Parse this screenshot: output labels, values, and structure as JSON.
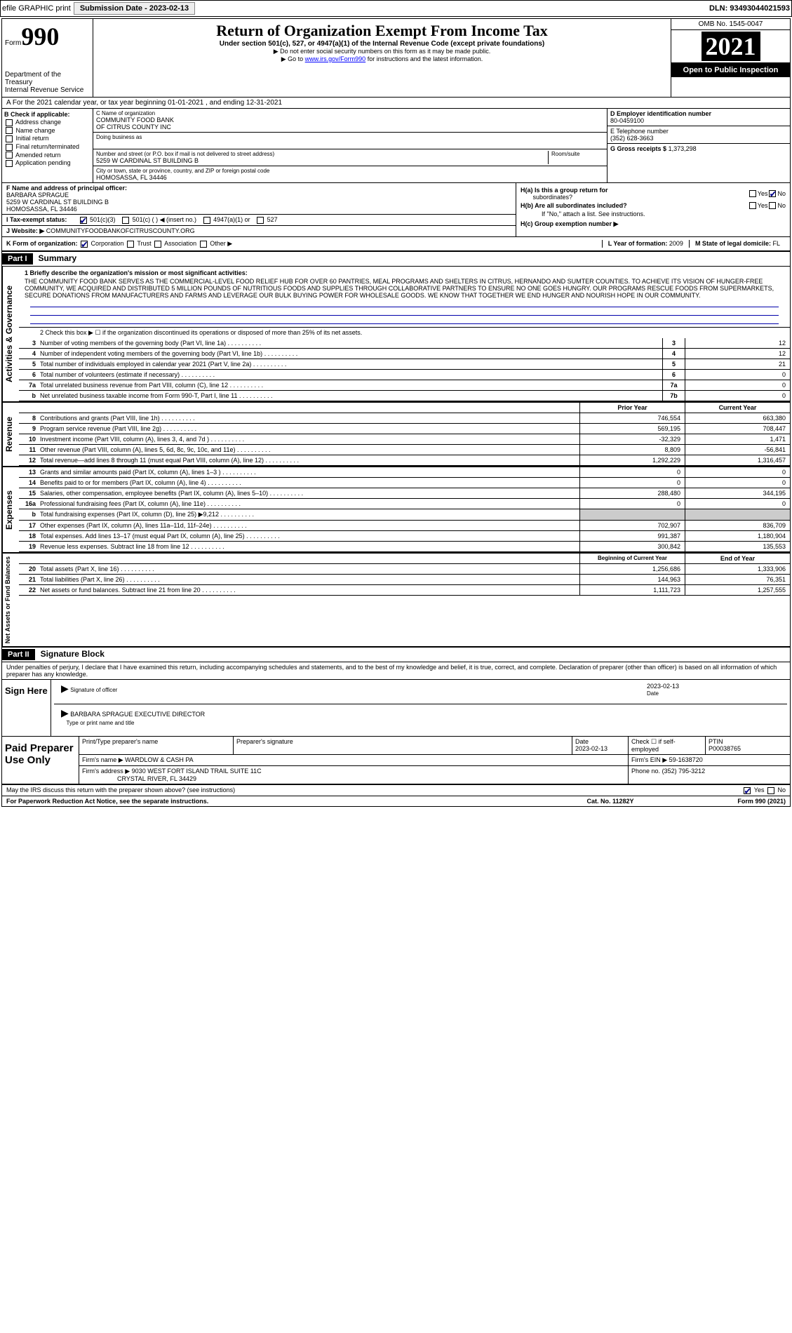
{
  "topbar": {
    "efile": "efile GRAPHIC print",
    "submission_label": "Submission Date - 2023-02-13",
    "dln": "DLN: 93493044021593"
  },
  "header": {
    "form_prefix": "Form",
    "form_number": "990",
    "dept": "Department of the Treasury",
    "irs": "Internal Revenue Service",
    "title": "Return of Organization Exempt From Income Tax",
    "sub": "Under section 501(c), 527, or 4947(a)(1) of the Internal Revenue Code (except private foundations)",
    "note1": "▶ Do not enter social security numbers on this form as it may be made public.",
    "note2_pre": "▶ Go to ",
    "note2_link": "www.irs.gov/Form990",
    "note2_post": " for instructions and the latest information.",
    "omb": "OMB No. 1545-0047",
    "year": "2021",
    "open": "Open to Public Inspection"
  },
  "rowA": "A For the 2021 calendar year, or tax year beginning 01-01-2021   , and ending 12-31-2021",
  "B": {
    "hdr": "B Check if applicable:",
    "items": [
      "Address change",
      "Name change",
      "Initial return",
      "Final return/terminated",
      "Amended return",
      "Application pending"
    ]
  },
  "C": {
    "name_label": "C Name of organization",
    "name1": "COMMUNITY FOOD BANK",
    "name2": "OF CITRUS COUNTY INC",
    "dba_label": "Doing business as",
    "street_label": "Number and street (or P.O. box if mail is not delivered to street address)",
    "room_label": "Room/suite",
    "street": "5259 W CARDINAL ST BUILDING B",
    "city_label": "City or town, state or province, country, and ZIP or foreign postal code",
    "city": "HOMOSASSA, FL  34446"
  },
  "D": {
    "label": "D Employer identification number",
    "value": "80-0459100"
  },
  "E": {
    "label": "E Telephone number",
    "value": "(352) 628-3663"
  },
  "G": {
    "label": "G Gross receipts $",
    "value": "1,373,298"
  },
  "F": {
    "label": "F  Name and address of principal officer:",
    "name": "BARBARA SPRAGUE",
    "addr1": "5259 W CARDINAL ST BUILDING B",
    "addr2": "HOMOSASSA, FL  34446"
  },
  "I": {
    "label": "I Tax-exempt status:",
    "opts": [
      "501(c)(3)",
      "501(c) (  ) ◀ (insert no.)",
      "4947(a)(1) or",
      "527"
    ]
  },
  "J": {
    "label": "J Website: ▶",
    "value": "COMMUNITYFOODBANKOFCITRUSCOUNTY.ORG"
  },
  "H": {
    "a1": "H(a)  Is this a group return for",
    "a2": "subordinates?",
    "b1": "H(b)  Are all subordinates included?",
    "b2": "If \"No,\" attach a list. See instructions.",
    "c": "H(c)  Group exemption number ▶",
    "yes": "Yes",
    "no": "No"
  },
  "K": {
    "label": "K Form of organization:",
    "opts": [
      "Corporation",
      "Trust",
      "Association",
      "Other ▶"
    ]
  },
  "L": {
    "label": "L Year of formation:",
    "value": "2009"
  },
  "M": {
    "label": "M State of legal domicile:",
    "value": "FL"
  },
  "part1": {
    "hdr": "Part I",
    "title": "Summary"
  },
  "summary": {
    "q1_label": "1   Briefly describe the organization's mission or most significant activities:",
    "q1_text": "THE COMMUNITY FOOD BANK SERVES AS THE COMMERCIAL-LEVEL FOOD RELIEF HUB FOR OVER 60 PANTRIES, MEAL PROGRAMS AND SHELTERS IN CITRUS, HERNANDO AND SUMTER COUNTIES. TO ACHIEVE ITS VISION OF HUNGER-FREE COMMUNITY, WE ACQUIRED AND DISTRIBUTED 5 MILLION POUNDS OF NUTRITIOUS FOODS AND SUPPLIES THROUGH COLLABORATIVE PARTNERS TO ENSURE NO ONE GOES HUNGRY. OUR PROGRAMS RESCUE FOODS FROM SUPERMARKETS, SECURE DONATIONS FROM MANUFACTURERS AND FARMS AND LEVERAGE OUR BULK BUYING POWER FOR WHOLESALE GOODS. WE KNOW THAT TOGETHER WE END HUNGER AND NOURISH HOPE IN OUR COMMUNITY.",
    "q2": "2   Check this box ▶ ☐ if the organization discontinued its operations or disposed of more than 25% of its net assets.",
    "lines_single": [
      {
        "n": "3",
        "t": "Number of voting members of the governing body (Part VI, line 1a)",
        "box": "3",
        "v": "12"
      },
      {
        "n": "4",
        "t": "Number of independent voting members of the governing body (Part VI, line 1b)",
        "box": "4",
        "v": "12"
      },
      {
        "n": "5",
        "t": "Total number of individuals employed in calendar year 2021 (Part V, line 2a)",
        "box": "5",
        "v": "21"
      },
      {
        "n": "6",
        "t": "Total number of volunteers (estimate if necessary)",
        "box": "6",
        "v": "0"
      },
      {
        "n": "7a",
        "t": "Total unrelated business revenue from Part VIII, column (C), line 12",
        "box": "7a",
        "v": "0"
      },
      {
        "n": "b",
        "t": "Net unrelated business taxable income from Form 990-T, Part I, line 11",
        "box": "7b",
        "v": "0"
      }
    ],
    "col_hdr": {
      "prior": "Prior Year",
      "current": "Current Year"
    },
    "revenue": [
      {
        "n": "8",
        "t": "Contributions and grants (Part VIII, line 1h)",
        "p": "746,554",
        "c": "663,380"
      },
      {
        "n": "9",
        "t": "Program service revenue (Part VIII, line 2g)",
        "p": "569,195",
        "c": "708,447"
      },
      {
        "n": "10",
        "t": "Investment income (Part VIII, column (A), lines 3, 4, and 7d )",
        "p": "-32,329",
        "c": "1,471"
      },
      {
        "n": "11",
        "t": "Other revenue (Part VIII, column (A), lines 5, 6d, 8c, 9c, 10c, and 11e)",
        "p": "8,809",
        "c": "-56,841"
      },
      {
        "n": "12",
        "t": "Total revenue—add lines 8 through 11 (must equal Part VIII, column (A), line 12)",
        "p": "1,292,229",
        "c": "1,316,457"
      }
    ],
    "expenses": [
      {
        "n": "13",
        "t": "Grants and similar amounts paid (Part IX, column (A), lines 1–3 )",
        "p": "0",
        "c": "0"
      },
      {
        "n": "14",
        "t": "Benefits paid to or for members (Part IX, column (A), line 4)",
        "p": "0",
        "c": "0"
      },
      {
        "n": "15",
        "t": "Salaries, other compensation, employee benefits (Part IX, column (A), lines 5–10)",
        "p": "288,480",
        "c": "344,195"
      },
      {
        "n": "16a",
        "t": "Professional fundraising fees (Part IX, column (A), line 11e)",
        "p": "0",
        "c": "0"
      },
      {
        "n": "b",
        "t": "Total fundraising expenses (Part IX, column (D), line 25) ▶9,212",
        "p": "",
        "c": "",
        "shade": true
      },
      {
        "n": "17",
        "t": "Other expenses (Part IX, column (A), lines 11a–11d, 11f–24e)",
        "p": "702,907",
        "c": "836,709"
      },
      {
        "n": "18",
        "t": "Total expenses. Add lines 13–17 (must equal Part IX, column (A), line 25)",
        "p": "991,387",
        "c": "1,180,904"
      },
      {
        "n": "19",
        "t": "Revenue less expenses. Subtract line 18 from line 12",
        "p": "300,842",
        "c": "135,553"
      }
    ],
    "col_hdr2": {
      "prior": "Beginning of Current Year",
      "current": "End of Year"
    },
    "netassets": [
      {
        "n": "20",
        "t": "Total assets (Part X, line 16)",
        "p": "1,256,686",
        "c": "1,333,906"
      },
      {
        "n": "21",
        "t": "Total liabilities (Part X, line 26)",
        "p": "144,963",
        "c": "76,351"
      },
      {
        "n": "22",
        "t": "Net assets or fund balances. Subtract line 21 from line 20",
        "p": "1,111,723",
        "c": "1,257,555"
      }
    ],
    "tabs": {
      "gov": "Activities & Governance",
      "rev": "Revenue",
      "exp": "Expenses",
      "net": "Net Assets or Fund Balances"
    }
  },
  "part2": {
    "hdr": "Part II",
    "title": "Signature Block"
  },
  "sig": {
    "decl": "Under penalties of perjury, I declare that I have examined this return, including accompanying schedules and statements, and to the best of my knowledge and belief, it is true, correct, and complete. Declaration of preparer (other than officer) is based on all information of which preparer has any knowledge.",
    "sign_here": "Sign Here",
    "sig_officer": "Signature of officer",
    "date_label": "Date",
    "date": "2023-02-13",
    "name_title": "BARBARA SPRAGUE  EXECUTIVE DIRECTOR",
    "type_label": "Type or print name and title"
  },
  "paid": {
    "label": "Paid Preparer Use Only",
    "h1": "Print/Type preparer's name",
    "h2": "Preparer's signature",
    "h3": "Date",
    "h3v": "2023-02-13",
    "h4": "Check ☐ if self-employed",
    "h5": "PTIN",
    "h5v": "P00038765",
    "firm_label": "Firm's name    ▶",
    "firm": "WARDLOW & CASH PA",
    "ein_label": "Firm's EIN ▶",
    "ein": "59-1638720",
    "addr_label": "Firm's address ▶",
    "addr1": "9030 WEST FORT ISLAND TRAIL SUITE 11C",
    "addr2": "CRYSTAL RIVER, FL  34429",
    "phone_label": "Phone no.",
    "phone": "(352) 795-3212"
  },
  "footer": {
    "discuss": "May the IRS discuss this return with the preparer shown above? (see instructions)",
    "yes": "Yes",
    "no": "No",
    "pra": "For Paperwork Reduction Act Notice, see the separate instructions.",
    "cat": "Cat. No. 11282Y",
    "form": "Form 990 (2021)"
  }
}
